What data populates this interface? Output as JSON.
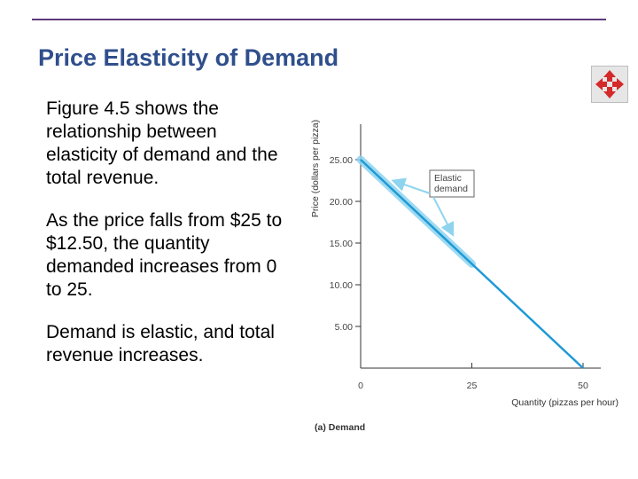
{
  "slide": {
    "title": "Price Elasticity of Demand",
    "bullets": [
      "Figure 4.5 shows the relationship between elasticity of demand and the total revenue.",
      "As the price falls from $25 to $12.50, the quantity demanded increases from 0 to 25.",
      "Demand is elastic, and total revenue increases."
    ],
    "toolbar": {
      "move_icon": "move-arrows-icon"
    }
  },
  "colors": {
    "title": "#2f4f8c",
    "rule": "#5c3a7a",
    "demand_line": "#1e9ad6",
    "elastic_highlight": "#8fd4ef",
    "icon_red": "#d42a2a"
  },
  "chart_data": {
    "type": "line",
    "title": "",
    "caption": "(a) Demand",
    "xlabel": "Quantity (pizzas per hour)",
    "ylabel": "Price (dollars per pizza)",
    "xlim": [
      0,
      50
    ],
    "ylim": [
      0,
      25
    ],
    "x_ticks": [
      "0",
      "25",
      "50"
    ],
    "x_tick_values": [
      0,
      25,
      50
    ],
    "y_ticks": [
      "5.00",
      "10.00",
      "15.00",
      "20.00",
      "25.00"
    ],
    "y_tick_values": [
      5,
      10,
      15,
      20,
      25
    ],
    "grid": false,
    "series": [
      {
        "x": [
          0,
          50
        ],
        "y": [
          25,
          0
        ]
      }
    ],
    "annotation": {
      "text_lines": [
        "Elastic",
        "demand"
      ],
      "x_range": [
        0,
        25
      ]
    }
  }
}
